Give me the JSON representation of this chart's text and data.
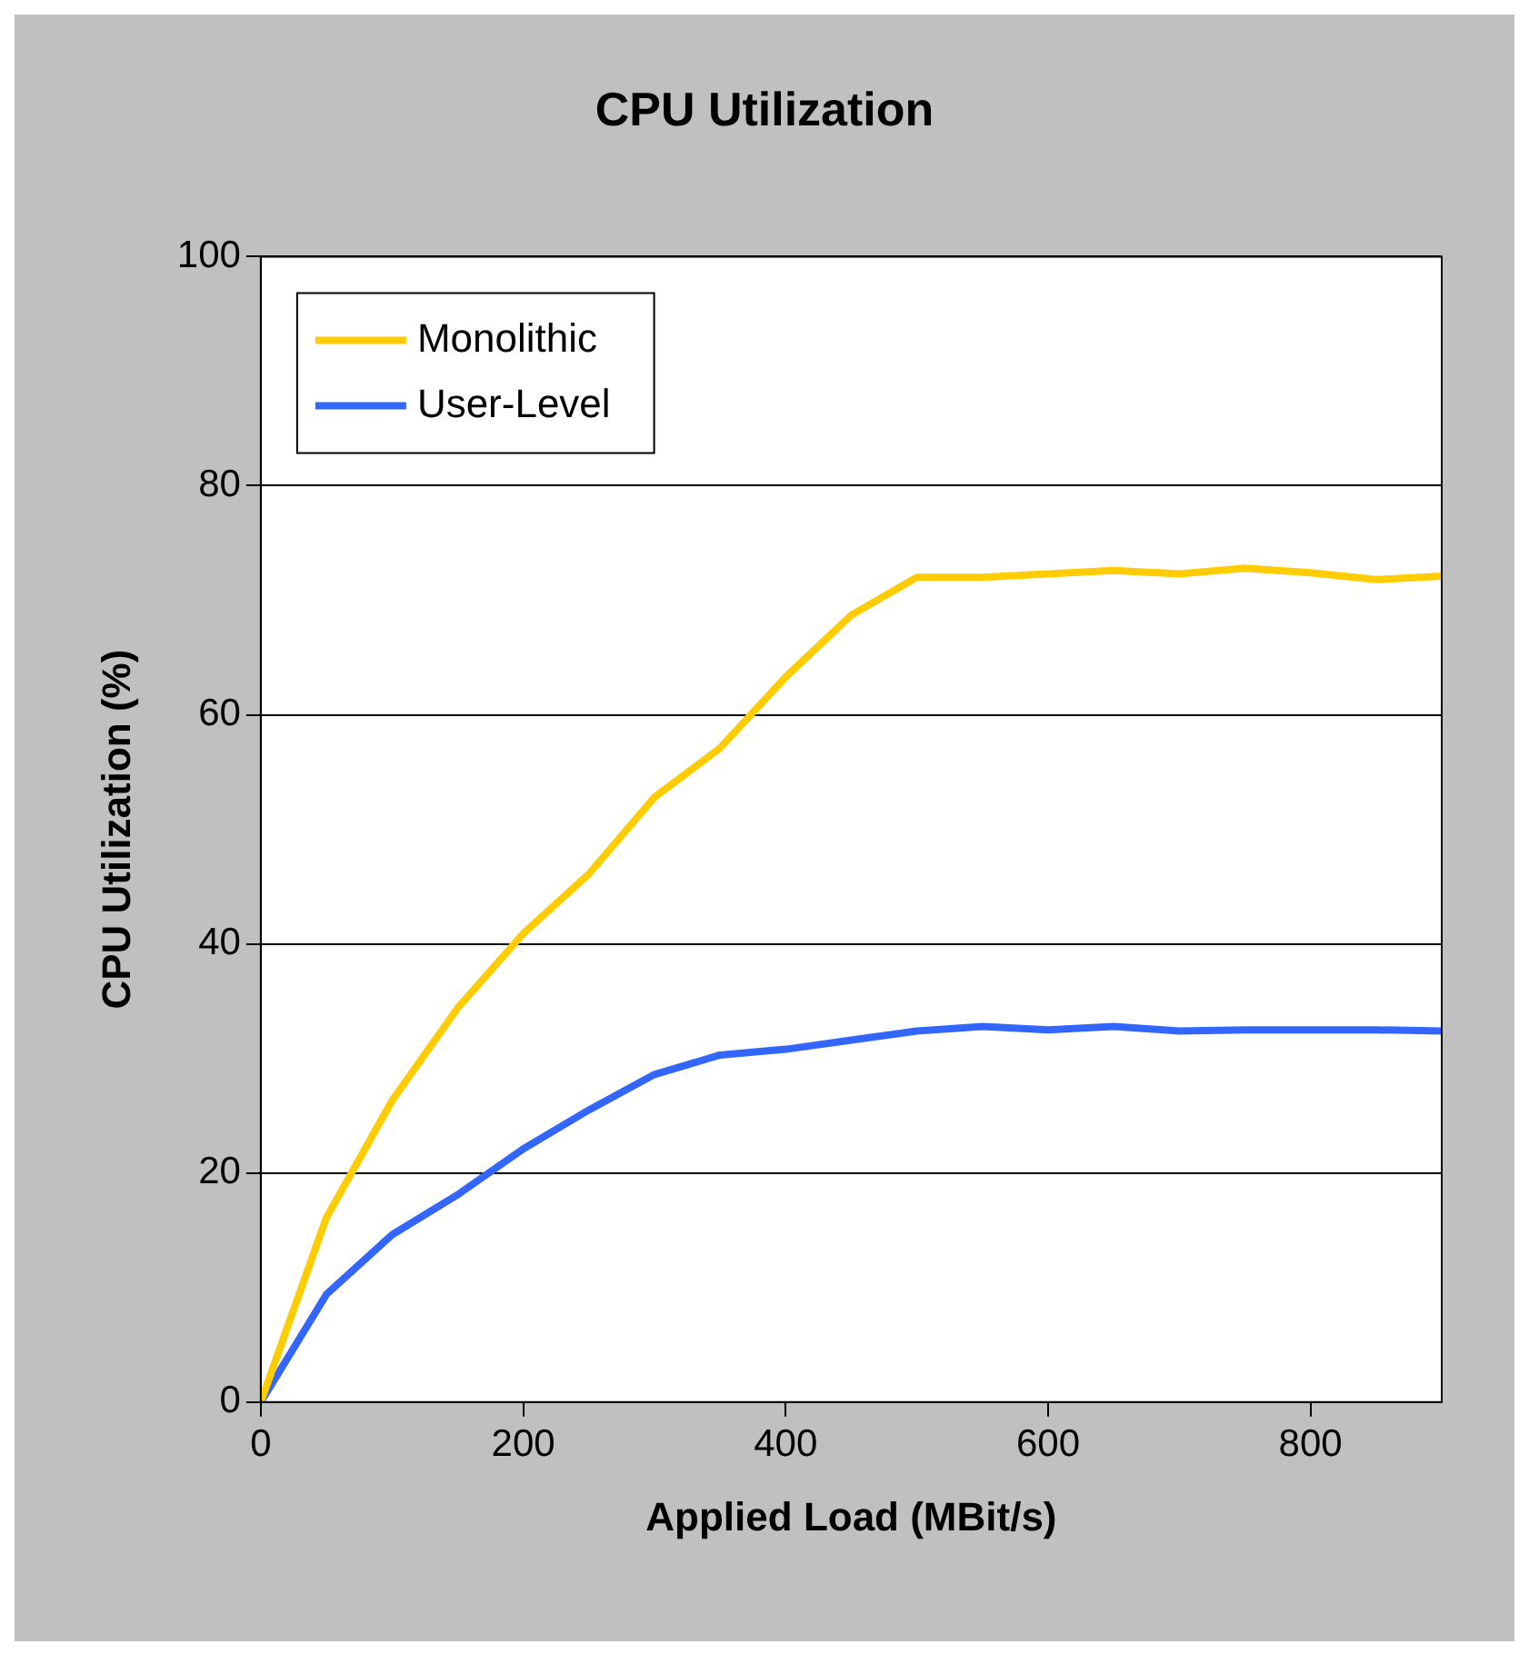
{
  "chart_data": {
    "type": "line",
    "title": "CPU Utilization",
    "xlabel": "Applied Load (MBit/s)",
    "ylabel": "CPU Utilization (%)",
    "x": [
      0,
      50,
      100,
      150,
      200,
      250,
      300,
      350,
      400,
      450,
      500,
      550,
      600,
      650,
      700,
      750,
      800,
      850,
      900
    ],
    "series": [
      {
        "name": "Monolithic",
        "color": "#ffcc00",
        "values": [
          0,
          16.1,
          26.3,
          34.4,
          40.9,
          46.1,
          52.8,
          57.1,
          63.3,
          68.7,
          72.0,
          72.0,
          72.3,
          72.6,
          72.3,
          72.8,
          72.4,
          71.8,
          72.1
        ]
      },
      {
        "name": "User-Level",
        "color": "#3366ff",
        "values": [
          0,
          9.4,
          14.6,
          18.1,
          22.1,
          25.5,
          28.6,
          30.3,
          30.8,
          31.6,
          32.4,
          32.8,
          32.5,
          32.8,
          32.4,
          32.5,
          32.5,
          32.5,
          32.4
        ]
      }
    ],
    "xlim": [
      0,
      900
    ],
    "xticks": [
      0,
      200,
      400,
      600,
      800
    ],
    "ylim": [
      0,
      100
    ],
    "yticks": [
      0,
      20,
      40,
      60,
      80,
      100
    ],
    "grid": "y",
    "legend": "top left",
    "marker": "none",
    "line_style": "solid"
  }
}
